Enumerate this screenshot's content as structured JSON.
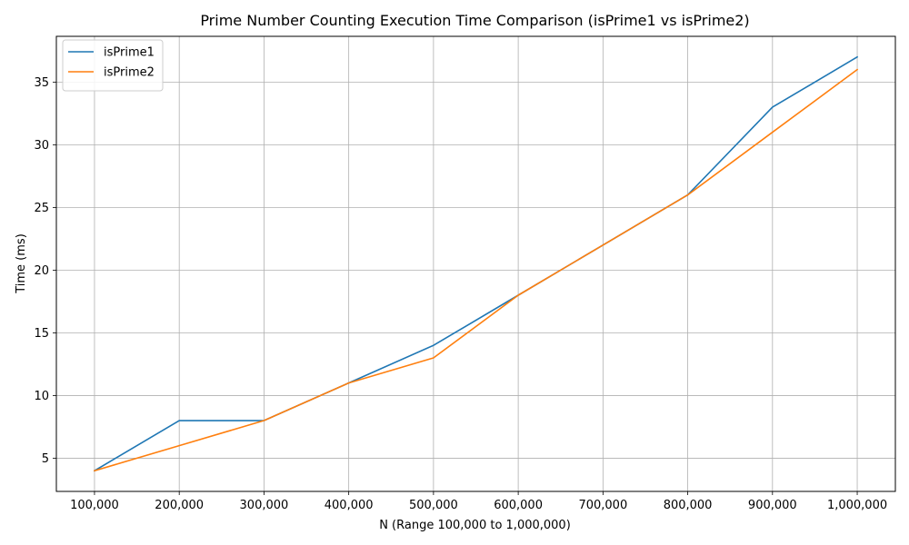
{
  "chart_data": {
    "type": "line",
    "title": "Prime Number Counting Execution Time Comparison (isPrime1 vs isPrime2)",
    "xlabel": "N (Range 100,000 to 1,000,000)",
    "ylabel": "Time (ms)",
    "x": [
      100000,
      200000,
      300000,
      400000,
      500000,
      600000,
      700000,
      800000,
      900000,
      1000000
    ],
    "x_tick_labels": [
      "100,000",
      "200,000",
      "300,000",
      "400,000",
      "500,000",
      "600,000",
      "700,000",
      "800,000",
      "900,000",
      "1,000,000"
    ],
    "y_ticks": [
      5,
      10,
      15,
      20,
      25,
      30,
      35
    ],
    "xlim": [
      55000,
      1045000
    ],
    "ylim": [
      2.35,
      38.65
    ],
    "grid": true,
    "legend_position": "top-left",
    "series": [
      {
        "name": "isPrime1",
        "color": "#1f77b4",
        "values": [
          4,
          8,
          8,
          11,
          14,
          18,
          22,
          26,
          33,
          37
        ]
      },
      {
        "name": "isPrime2",
        "color": "#ff7f0e",
        "values": [
          4,
          6,
          8,
          11,
          13,
          18,
          22,
          26,
          31,
          36
        ]
      }
    ]
  }
}
